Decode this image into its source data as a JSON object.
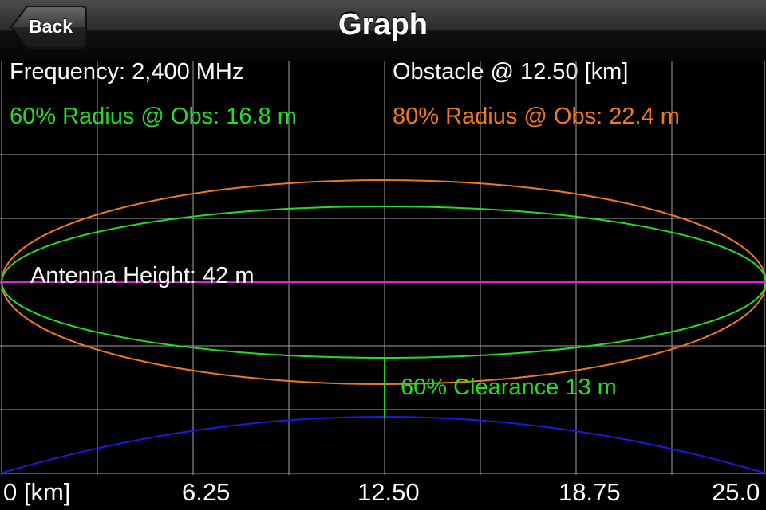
{
  "nav": {
    "title": "Graph",
    "back_label": "Back"
  },
  "info": {
    "frequency": "Frequency: 2,400 MHz",
    "obstacle": "Obstacle @ 12.50 [km]",
    "radius60": "60% Radius @ Obs: 16.8 m",
    "radius80": "80% Radius @ Obs: 22.4 m"
  },
  "graph": {
    "antenna_label": "Antenna Height: 42 m",
    "clearance_label": "60% Clearance 13 m",
    "x_ticks": [
      "0 [km]",
      "6.25",
      "12.50",
      "18.75",
      "25.0"
    ]
  },
  "colors": {
    "green": "#22dd22",
    "orange": "#f07820",
    "magenta": "#dd22dd",
    "blue": "#1a1ae0",
    "grid": "#a0a0a0"
  }
}
